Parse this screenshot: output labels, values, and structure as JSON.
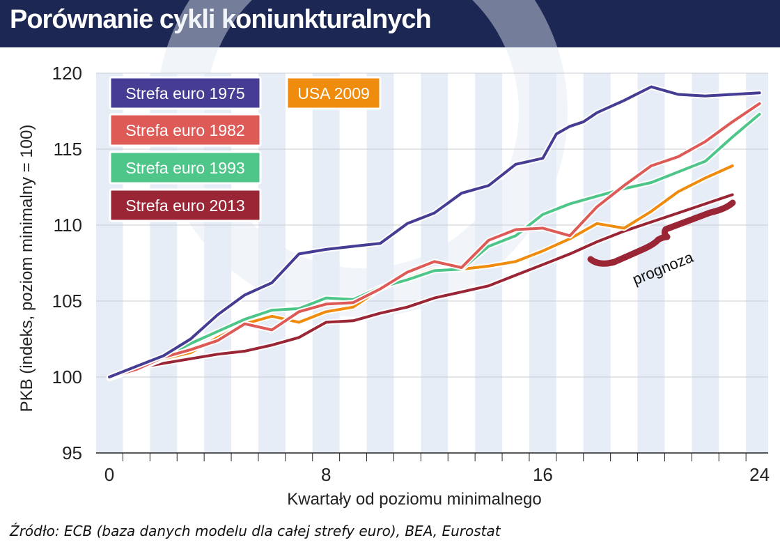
{
  "header": {
    "title": "Porównanie cykli koniunkturalnych"
  },
  "source": "Źródło: ECB (baza danych modelu dla całej strefy euro), BEA, Eurostat",
  "annotation": {
    "label": "prognoza"
  },
  "chart_data": {
    "type": "line",
    "xlabel": "Kwartały od poziomu minimalnego",
    "ylabel": "PKB (indeks, poziom minimalny = 100)",
    "xlim": [
      0,
      24
    ],
    "ylim": [
      95,
      120
    ],
    "xticks": [
      0,
      8,
      16,
      24
    ],
    "yticks": [
      95,
      100,
      105,
      110,
      115,
      120
    ],
    "legend_placement": "top-left",
    "series": [
      {
        "name": "Strefa euro 1975",
        "color": "#453c94",
        "x": [
          0,
          1,
          2,
          3,
          4,
          5,
          6,
          7,
          8,
          9,
          10,
          11,
          12,
          13,
          14,
          15,
          16,
          16.5,
          17,
          17.5,
          18,
          19,
          20,
          21,
          22,
          23,
          24
        ],
        "values": [
          100,
          100.7,
          101.4,
          102.5,
          104.1,
          105.4,
          106.2,
          108.1,
          108.4,
          108.6,
          108.8,
          110.1,
          110.8,
          112.1,
          112.6,
          114.0,
          114.4,
          116.0,
          116.5,
          116.8,
          117.4,
          118.2,
          119.1,
          118.6,
          118.5,
          118.6,
          118.7
        ]
      },
      {
        "name": "Strefa euro 1982",
        "color": "#dd5a57",
        "x": [
          0,
          1,
          2,
          3,
          4,
          5,
          6,
          7,
          8,
          9,
          10,
          11,
          12,
          13,
          14,
          15,
          16,
          17,
          18,
          19,
          20,
          21,
          22,
          23,
          24
        ],
        "values": [
          100,
          100.5,
          101.3,
          101.8,
          102.4,
          103.5,
          103.1,
          104.3,
          104.8,
          104.9,
          105.8,
          106.9,
          107.6,
          107.2,
          109.0,
          109.7,
          109.8,
          109.3,
          111.2,
          112.6,
          113.9,
          114.5,
          115.5,
          116.8,
          118.0
        ]
      },
      {
        "name": "Strefa euro 1993",
        "color": "#4ec68a",
        "x": [
          0,
          1,
          2,
          3,
          4,
          5,
          6,
          7,
          8,
          9,
          10,
          11,
          12,
          13,
          14,
          15,
          16,
          17,
          18,
          19,
          20,
          21,
          22,
          23,
          24
        ],
        "values": [
          100,
          100.6,
          101.3,
          102.2,
          103.0,
          103.8,
          104.4,
          104.5,
          105.2,
          105.1,
          105.9,
          106.4,
          107.0,
          107.1,
          108.6,
          109.3,
          110.7,
          111.4,
          111.9,
          112.4,
          112.8,
          113.5,
          114.2,
          115.8,
          117.3
        ]
      },
      {
        "name": "USA 2009",
        "color": "#ef8c0e",
        "x": [
          0,
          1,
          2,
          3,
          4,
          5,
          6,
          7,
          8,
          9,
          10,
          11,
          12,
          13,
          14,
          15,
          16,
          17,
          18,
          19,
          20,
          21,
          22,
          23
        ],
        "values": [
          99.9,
          100.5,
          101.2,
          101.6,
          102.6,
          103.5,
          104.0,
          103.6,
          104.3,
          104.6,
          105.8,
          106.5,
          107.1,
          107.1,
          107.3,
          107.6,
          108.3,
          109.1,
          110.1,
          109.8,
          110.9,
          112.2,
          113.1,
          113.9
        ]
      },
      {
        "name": "Strefa euro 2013",
        "color": "#9a2535",
        "x": [
          0,
          1,
          2,
          3,
          4,
          5,
          6,
          7,
          8,
          9,
          10,
          11,
          12,
          13,
          14,
          15,
          16,
          17,
          18,
          19,
          20,
          21,
          22,
          23
        ],
        "values": [
          100,
          100.6,
          100.9,
          101.2,
          101.5,
          101.7,
          102.1,
          102.6,
          103.6,
          103.7,
          104.2,
          104.6,
          105.2,
          105.6,
          106.0,
          106.7,
          107.4,
          108.1,
          108.9,
          109.6,
          110.2,
          110.8,
          111.4,
          112.0
        ]
      }
    ]
  }
}
